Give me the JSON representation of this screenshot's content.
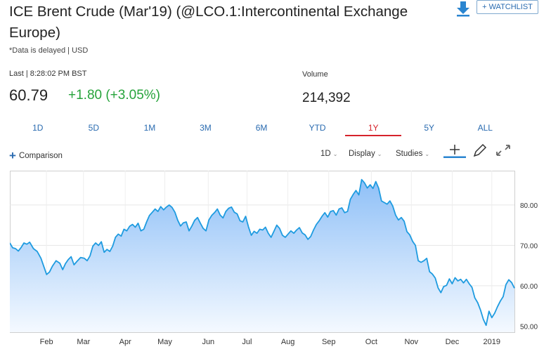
{
  "header": {
    "title": "ICE Brent Crude (Mar'19) (@LCO.1:Intercontinental Exchange Europe)",
    "delayed_note": "*Data is delayed | USD",
    "watchlist_label": "+ WATCHLIST",
    "download_icon": "download-arrow-icon"
  },
  "quote": {
    "last_label": "Last | 8:28:02 PM BST",
    "price": "60.79",
    "change": "+1.80 (+3.05%)",
    "change_color": "#26a33b",
    "volume_label": "Volume",
    "volume": "214,392"
  },
  "ranges": {
    "items": [
      "1D",
      "5D",
      "1M",
      "3M",
      "6M",
      "YTD",
      "1Y",
      "5Y",
      "ALL"
    ],
    "active": "1Y",
    "active_color": "#d6232b"
  },
  "toolbar": {
    "comparison_label": "Comparison",
    "interval_label": "1D",
    "display_label": "Display",
    "studies_label": "Studies",
    "tools": [
      "crosshair-icon",
      "pencil-icon",
      "expand-icon"
    ]
  },
  "chart_data": {
    "type": "area",
    "x_labels": [
      "Feb",
      "Mar",
      "Apr",
      "May",
      "Jun",
      "Jul",
      "Aug",
      "Sep",
      "Oct",
      "Nov",
      "Dec",
      "2019"
    ],
    "y_ticks": [
      "50.00",
      "60.00",
      "70.00",
      "80.00"
    ],
    "ylim": [
      48.5,
      88.5
    ],
    "grid": true,
    "line_color": "#1e9be0",
    "series": [
      {
        "x": [
          0,
          0.3,
          0.6,
          0.9,
          1.2,
          1.5,
          1.8,
          2.1,
          2.5,
          2.9,
          3.3,
          3.6,
          3.9,
          4.2,
          4.5,
          4.9,
          5.3,
          5.6,
          5.9,
          6.2,
          6.5,
          6.8,
          7.1,
          7.5,
          7.9,
          8.2,
          8.5,
          8.8,
          9.1,
          9.4,
          9.7,
          10.0,
          10.3,
          10.6,
          10.9,
          11.2,
          11.5,
          11.8,
          12.1,
          12.4,
          12.7,
          13.0,
          13.3,
          13.6,
          13.9,
          14.2,
          14.5,
          14.8,
          15.1,
          15.4,
          15.7,
          16.0,
          16.3,
          16.6,
          16.9,
          17.2,
          17.5,
          17.8,
          18.1,
          18.4,
          18.7,
          19.0,
          19.3,
          19.6,
          19.9,
          20.2,
          20.5,
          20.8,
          21.1,
          21.4,
          21.7,
          22.0,
          22.3,
          22.6,
          22.9,
          23.2,
          23.5,
          23.8,
          24.1,
          24.4,
          24.7,
          25.0,
          25.3,
          25.6,
          25.9,
          26.2,
          26.5,
          26.8,
          27.1,
          27.4,
          27.7,
          28.0,
          28.3,
          28.6,
          28.9,
          29.2,
          29.5,
          29.8,
          30.1,
          30.4,
          30.7,
          31.0,
          31.3,
          31.6,
          31.9,
          32.2,
          32.5,
          32.8,
          33.1,
          33.4,
          33.7,
          34.0,
          34.3,
          34.6,
          34.9,
          35.2,
          35.5,
          35.8,
          36.1,
          36.4,
          36.7,
          37.0,
          37.3,
          37.6,
          37.9,
          38.2,
          38.5,
          38.8,
          39.1,
          39.4,
          39.7,
          40.0,
          40.3,
          40.6,
          40.9,
          41.2,
          41.5,
          41.8,
          42.1,
          42.4,
          42.7,
          43.0,
          43.3,
          43.6,
          43.9,
          44.2,
          44.5,
          44.8,
          45.1,
          45.4,
          45.7,
          46.0,
          46.3,
          46.6,
          46.9,
          47.2,
          47.5,
          47.8,
          48.1,
          48.4,
          48.7,
          49.0,
          49.3,
          49.6,
          49.9,
          50.2,
          50.5,
          50.8,
          51.1,
          51.4,
          51.7,
          52.0,
          52.3,
          52.6,
          52.9,
          53.2,
          53.5
        ],
        "y": [
          70.6,
          69.4,
          69.2,
          68.6,
          69.5,
          70.6,
          70.3,
          70.8,
          69.2,
          68.5,
          66.8,
          64.8,
          62.8,
          63.4,
          64.8,
          66.2,
          65.6,
          64.0,
          65.5,
          66.5,
          67.2,
          65.2,
          66.0,
          67.0,
          66.8,
          66.2,
          67.4,
          69.8,
          70.6,
          70.0,
          70.9,
          68.3,
          69.0,
          68.5,
          69.8,
          72.0,
          72.8,
          72.3,
          74.0,
          73.6,
          74.7,
          75.2,
          74.5,
          75.5,
          73.6,
          74.0,
          75.8,
          77.4,
          78.2,
          79.0,
          78.4,
          79.6,
          78.8,
          79.5,
          80.0,
          79.4,
          78.2,
          76.2,
          74.8,
          75.6,
          75.8,
          73.6,
          74.8,
          76.2,
          76.9,
          75.5,
          74.2,
          73.6,
          76.3,
          77.4,
          78.1,
          79.0,
          77.5,
          76.8,
          78.4,
          79.2,
          79.5,
          78.2,
          77.8,
          76.1,
          75.8,
          77.2,
          74.6,
          72.5,
          73.5,
          73.0,
          74.0,
          73.8,
          74.5,
          73.0,
          72.0,
          73.5,
          75.0,
          74.2,
          72.5,
          72.0,
          72.8,
          73.6,
          73.0,
          73.8,
          74.4,
          73.1,
          72.6,
          71.5,
          72.2,
          73.8,
          75.2,
          76.1,
          77.2,
          78.1,
          77.0,
          78.4,
          78.6,
          77.5,
          79.0,
          79.3,
          78.1,
          78.4,
          81.4,
          82.6,
          83.6,
          82.5,
          86.3,
          85.5,
          84.2,
          85.0,
          84.1,
          85.8,
          84.2,
          81.0,
          80.6,
          80.2,
          81.0,
          79.7,
          77.5,
          76.3,
          76.9,
          76.0,
          73.4,
          72.6,
          71.0,
          70.0,
          66.2,
          65.8,
          66.2,
          66.8,
          63.5,
          62.9,
          61.9,
          59.5,
          58.3,
          59.8,
          60.1,
          61.7,
          60.5,
          62.0,
          61.2,
          61.6,
          60.7,
          61.6,
          60.5,
          59.6,
          57.0,
          55.8,
          54.0,
          51.7,
          50.2,
          53.7,
          52.1,
          53.2,
          54.8,
          56.2,
          57.3,
          60.3,
          61.5,
          60.8,
          59.4
        ]
      }
    ]
  }
}
